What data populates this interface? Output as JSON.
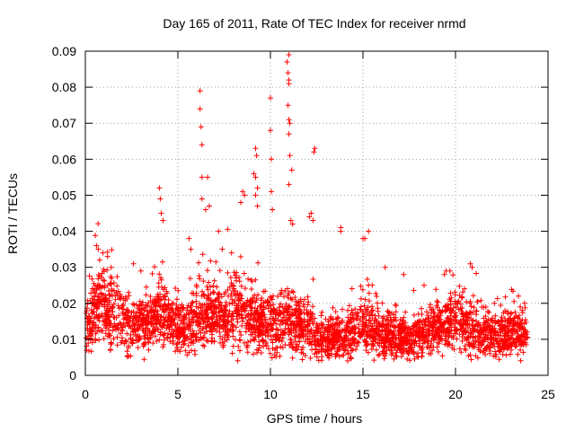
{
  "chart_data": {
    "type": "scatter",
    "title": "Day 165 of 2011, Rate Of TEC Index for receiver nrmd",
    "xlabel": "GPS time / hours",
    "ylabel": "ROTI / TECUs",
    "xlim": [
      0,
      25
    ],
    "ylim": [
      0,
      0.09
    ],
    "x_ticks": [
      0,
      5,
      10,
      15,
      20,
      25
    ],
    "x_tick_labels": [
      "0",
      "5",
      "10",
      "15",
      "20",
      "25"
    ],
    "y_ticks": [
      0,
      0.01,
      0.02,
      0.03,
      0.04,
      0.05,
      0.06,
      0.07,
      0.08,
      0.09
    ],
    "y_tick_labels": [
      "0",
      "0.01",
      "0.02",
      "0.03",
      "0.04",
      "0.05",
      "0.06",
      "0.07",
      "0.08",
      "0.09"
    ],
    "grid": true,
    "marker": "plus",
    "marker_color": "#ff0000",
    "density_profile": [
      [
        0.0,
        0.012
      ],
      [
        0.5,
        0.018
      ],
      [
        1.0,
        0.019
      ],
      [
        1.5,
        0.017
      ],
      [
        2.0,
        0.015
      ],
      [
        2.5,
        0.013
      ],
      [
        3.0,
        0.014
      ],
      [
        3.5,
        0.015
      ],
      [
        4.0,
        0.018
      ],
      [
        4.5,
        0.016
      ],
      [
        5.0,
        0.013
      ],
      [
        5.5,
        0.013
      ],
      [
        6.0,
        0.015
      ],
      [
        6.5,
        0.016
      ],
      [
        7.0,
        0.016
      ],
      [
        7.5,
        0.017
      ],
      [
        8.0,
        0.018
      ],
      [
        8.5,
        0.017
      ],
      [
        9.0,
        0.016
      ],
      [
        9.5,
        0.015
      ],
      [
        10.0,
        0.014
      ],
      [
        10.5,
        0.015
      ],
      [
        11.0,
        0.016
      ],
      [
        11.5,
        0.014
      ],
      [
        12.0,
        0.013
      ],
      [
        12.5,
        0.011
      ],
      [
        13.0,
        0.01
      ],
      [
        13.5,
        0.01
      ],
      [
        14.0,
        0.011
      ],
      [
        14.5,
        0.012
      ],
      [
        15.0,
        0.014
      ],
      [
        15.5,
        0.012
      ],
      [
        16.0,
        0.011
      ],
      [
        16.5,
        0.012
      ],
      [
        17.0,
        0.011
      ],
      [
        17.5,
        0.01
      ],
      [
        18.0,
        0.011
      ],
      [
        18.5,
        0.012
      ],
      [
        19.0,
        0.013
      ],
      [
        19.5,
        0.015
      ],
      [
        20.0,
        0.015
      ],
      [
        20.5,
        0.014
      ],
      [
        21.0,
        0.013
      ],
      [
        21.5,
        0.012
      ],
      [
        22.0,
        0.011
      ],
      [
        22.5,
        0.011
      ],
      [
        23.0,
        0.012
      ],
      [
        23.5,
        0.011
      ],
      [
        23.9,
        0.009
      ]
    ],
    "notable_points": [
      [
        6.2,
        0.079
      ],
      [
        6.2,
        0.074
      ],
      [
        6.25,
        0.069
      ],
      [
        6.3,
        0.064
      ],
      [
        6.3,
        0.055
      ],
      [
        6.3,
        0.049
      ],
      [
        4.0,
        0.052
      ],
      [
        4.05,
        0.049
      ],
      [
        4.1,
        0.045
      ],
      [
        4.2,
        0.043
      ],
      [
        6.6,
        0.055
      ],
      [
        6.7,
        0.047
      ],
      [
        6.5,
        0.046
      ],
      [
        8.5,
        0.051
      ],
      [
        8.6,
        0.05
      ],
      [
        8.4,
        0.048
      ],
      [
        9.2,
        0.063
      ],
      [
        9.25,
        0.061
      ],
      [
        9.1,
        0.056
      ],
      [
        9.2,
        0.055
      ],
      [
        9.3,
        0.052
      ],
      [
        9.2,
        0.05
      ],
      [
        9.3,
        0.047
      ],
      [
        10.0,
        0.077
      ],
      [
        10.0,
        0.068
      ],
      [
        10.05,
        0.06
      ],
      [
        10.05,
        0.051
      ],
      [
        10.1,
        0.046
      ],
      [
        11.0,
        0.089
      ],
      [
        10.9,
        0.087
      ],
      [
        10.95,
        0.084
      ],
      [
        11.0,
        0.082
      ],
      [
        11.0,
        0.081
      ],
      [
        10.95,
        0.075
      ],
      [
        11.0,
        0.071
      ],
      [
        11.05,
        0.07
      ],
      [
        11.0,
        0.067
      ],
      [
        11.05,
        0.061
      ],
      [
        11.0,
        0.053
      ],
      [
        11.15,
        0.057
      ],
      [
        11.1,
        0.043
      ],
      [
        11.2,
        0.042
      ],
      [
        12.4,
        0.063
      ],
      [
        12.35,
        0.062
      ],
      [
        12.2,
        0.045
      ],
      [
        12.1,
        0.044
      ],
      [
        12.3,
        0.043
      ],
      [
        13.8,
        0.041
      ],
      [
        13.8,
        0.04
      ],
      [
        15.0,
        0.038
      ],
      [
        15.1,
        0.038
      ],
      [
        15.3,
        0.04
      ],
      [
        19.5,
        0.029
      ],
      [
        19.7,
        0.029
      ],
      [
        19.4,
        0.028
      ],
      [
        20.8,
        0.031
      ],
      [
        20.9,
        0.03
      ],
      [
        23.4,
        0.022
      ],
      [
        23.5,
        0.019
      ],
      [
        23.6,
        0.018
      ],
      [
        0.6,
        0.036
      ],
      [
        0.7,
        0.035
      ],
      [
        1.2,
        0.033
      ],
      [
        1.4,
        0.03
      ],
      [
        2.6,
        0.031
      ],
      [
        3.0,
        0.029
      ],
      [
        5.6,
        0.038
      ],
      [
        5.7,
        0.035
      ],
      [
        7.2,
        0.04
      ],
      [
        7.4,
        0.035
      ],
      [
        7.9,
        0.034
      ],
      [
        16.2,
        0.03
      ],
      [
        17.2,
        0.028
      ],
      [
        18.3,
        0.025
      ],
      [
        22.1,
        0.02
      ]
    ]
  }
}
